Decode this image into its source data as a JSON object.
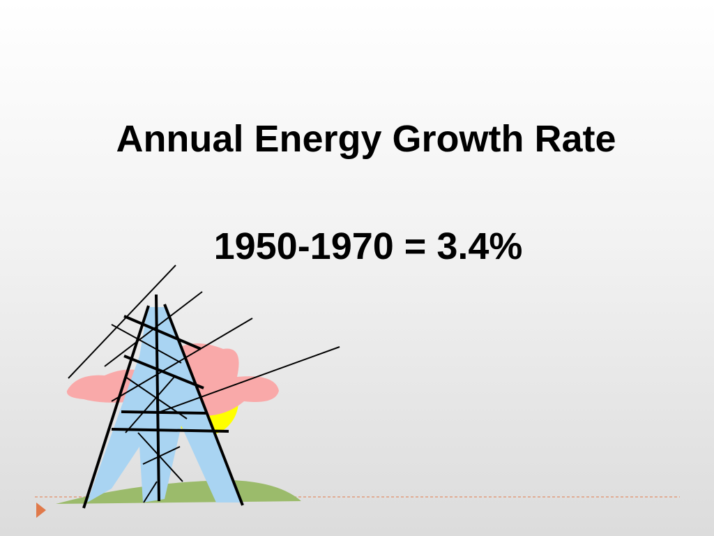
{
  "slide": {
    "title": "Annual Energy Growth Rate",
    "subtitle": "1950-1970 = 3.4%"
  }
}
